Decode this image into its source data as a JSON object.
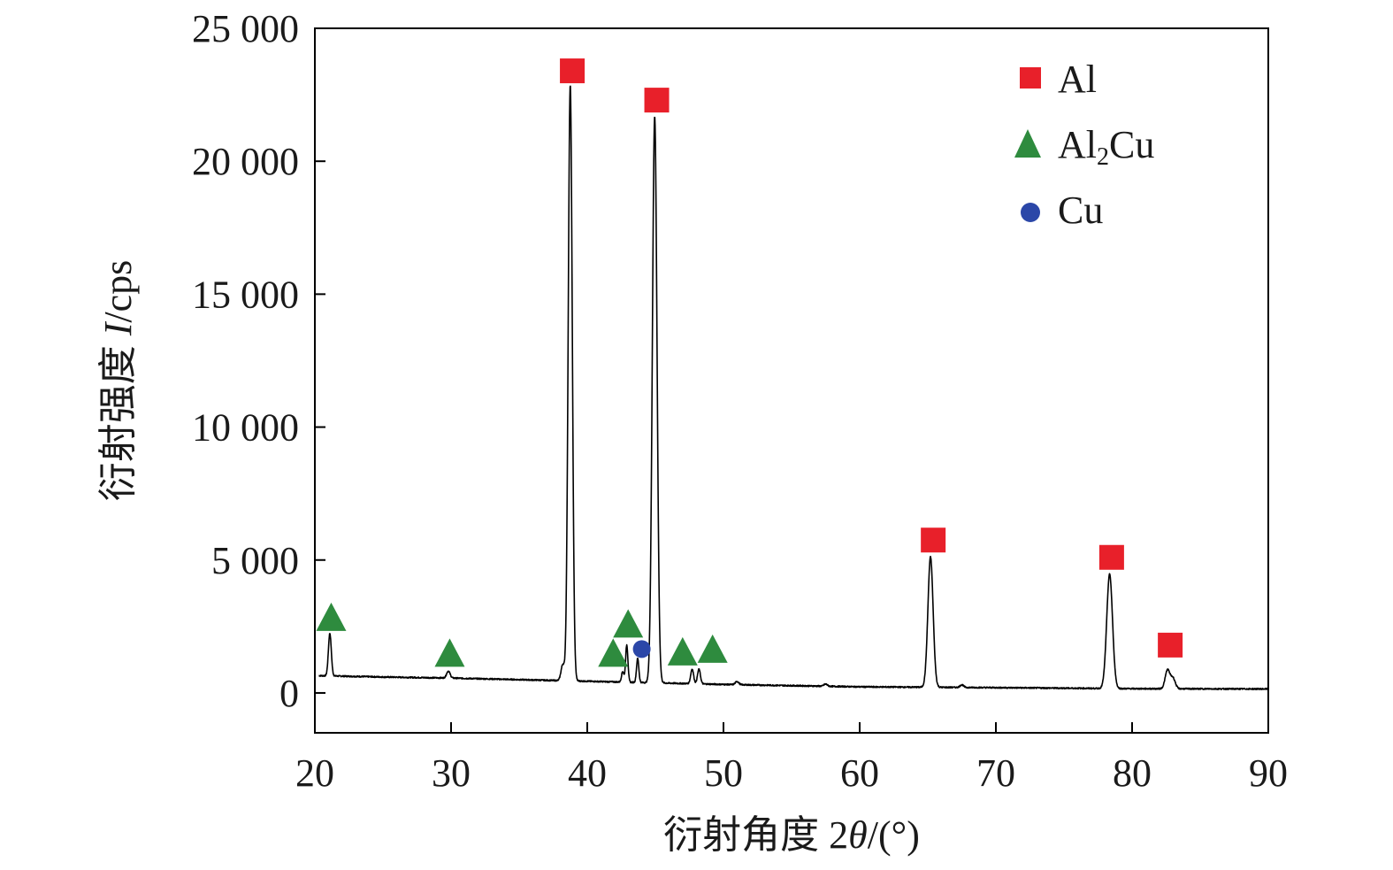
{
  "chart_data": {
    "type": "line",
    "xlabel": "衍射角度 2θ/(°)",
    "xlabel_parts": {
      "prefix": "衍射角度 2",
      "symbol": "θ",
      "suffix": "/(°)"
    },
    "ylabel": "衍射强度 I/cps",
    "ylabel_parts": {
      "prefix": "衍射强度 ",
      "symbol": "I",
      "suffix": "/cps"
    },
    "xlim": [
      20,
      90
    ],
    "ylim": [
      -1500,
      25000
    ],
    "x_ticks": [
      20,
      30,
      40,
      50,
      60,
      70,
      80,
      90
    ],
    "x_tick_labels": [
      "20",
      "30",
      "40",
      "50",
      "60",
      "70",
      "80",
      "90"
    ],
    "y_ticks": [
      0,
      5000,
      10000,
      15000,
      20000,
      25000
    ],
    "y_tick_labels": [
      "0",
      "5 000",
      "10 000",
      "15 000",
      "20 000",
      "25 000"
    ],
    "grid": false,
    "legend_position": "top-right",
    "pattern": {
      "color": "#000000",
      "baseline": [
        [
          20.3,
          650
        ],
        [
          25,
          600
        ],
        [
          30,
          560
        ],
        [
          35,
          500
        ],
        [
          40,
          440
        ],
        [
          50,
          320
        ],
        [
          60,
          230
        ],
        [
          70,
          200
        ],
        [
          80,
          160
        ],
        [
          90,
          150
        ]
      ],
      "peaks": [
        {
          "x": 21.1,
          "height": 1600,
          "fwhm": 0.25
        },
        {
          "x": 29.8,
          "height": 260,
          "fwhm": 0.3
        },
        {
          "x": 38.2,
          "height": 600,
          "fwhm": 0.3
        },
        {
          "x": 38.75,
          "height": 22400,
          "fwhm": 0.35
        },
        {
          "x": 42.6,
          "height": 400,
          "fwhm": 0.2
        },
        {
          "x": 42.9,
          "height": 1400,
          "fwhm": 0.2
        },
        {
          "x": 43.7,
          "height": 900,
          "fwhm": 0.2
        },
        {
          "x": 44.95,
          "height": 21300,
          "fwhm": 0.4
        },
        {
          "x": 47.7,
          "height": 550,
          "fwhm": 0.25
        },
        {
          "x": 48.2,
          "height": 550,
          "fwhm": 0.25
        },
        {
          "x": 51.0,
          "height": 120,
          "fwhm": 0.3
        },
        {
          "x": 57.5,
          "height": 80,
          "fwhm": 0.3
        },
        {
          "x": 65.2,
          "height": 4900,
          "fwhm": 0.45
        },
        {
          "x": 67.5,
          "height": 100,
          "fwhm": 0.3
        },
        {
          "x": 78.35,
          "height": 4300,
          "fwhm": 0.5
        },
        {
          "x": 82.6,
          "height": 700,
          "fwhm": 0.4
        },
        {
          "x": 83.0,
          "height": 400,
          "fwhm": 0.4
        }
      ]
    },
    "series": [
      {
        "name": "Al",
        "name_parts": {
          "base": "Al",
          "sub": "",
          "rest": ""
        },
        "marker": "square",
        "color": "#e8202a",
        "points": [
          [
            38.9,
            23400
          ],
          [
            45.1,
            22300
          ],
          [
            65.4,
            5750
          ],
          [
            78.5,
            5100
          ],
          [
            82.8,
            1800
          ]
        ]
      },
      {
        "name": "Al2Cu",
        "name_parts": {
          "base": "Al",
          "sub": "2",
          "rest": "Cu"
        },
        "marker": "triangle",
        "color": "#2e8b3e",
        "points": [
          [
            21.2,
            2800
          ],
          [
            29.9,
            1450
          ],
          [
            41.9,
            1450
          ],
          [
            43.0,
            2550
          ],
          [
            47.0,
            1500
          ],
          [
            49.2,
            1600
          ]
        ]
      },
      {
        "name": "Cu",
        "name_parts": {
          "base": "Cu",
          "sub": "",
          "rest": ""
        },
        "marker": "circle",
        "color": "#2b47a8",
        "points": [
          [
            44.0,
            1650
          ]
        ]
      }
    ]
  }
}
